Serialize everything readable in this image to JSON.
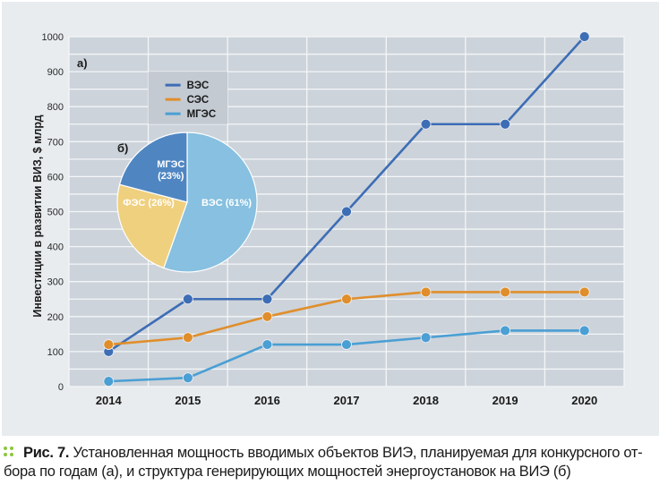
{
  "chart_data": [
    {
      "type": "line",
      "panel_label": "а)",
      "title": "",
      "xlabel": "",
      "ylabel": "Инвестиции в развитии ВИЗ, $ млрд",
      "categories": [
        "2014",
        "2015",
        "2016",
        "2017",
        "2018",
        "2019",
        "2020"
      ],
      "ylim": [
        0,
        1000
      ],
      "yticks": [
        0,
        100,
        200,
        300,
        400,
        500,
        600,
        700,
        800,
        900,
        1000
      ],
      "grid": true,
      "legend_position": "top-left",
      "series": [
        {
          "name": "ВЭС",
          "color": "#3d6db5",
          "values": [
            100,
            250,
            250,
            500,
            750,
            750,
            1000
          ]
        },
        {
          "name": "СЭС",
          "color": "#e08e2b",
          "values": [
            120,
            140,
            200,
            250,
            270,
            270,
            270
          ]
        },
        {
          "name": "МГЭС",
          "color": "#4a9fd4",
          "values": [
            15,
            25,
            120,
            120,
            140,
            160,
            160
          ]
        }
      ]
    },
    {
      "type": "pie",
      "panel_label": "б)",
      "slices": [
        {
          "label": "ВЭС",
          "display": "ВЭС (61%)",
          "value": 61,
          "color": "#87c0e0"
        },
        {
          "label": "ФЭС",
          "display": "ФЭС (26%)",
          "value": 26,
          "color": "#efd07f"
        },
        {
          "label": "МГЭС",
          "display_line1": "МГЭС",
          "display_line2": "(23%)",
          "value": 23,
          "color": "#4f86c2"
        }
      ]
    }
  ],
  "caption": {
    "figure_label": "Рис. 7.",
    "text": " Установленная мощность вводимых объектов ВИЭ, планируемая для конкурсного от-бора по годам (а), и структура генерирующих мощностей энергоустановок на ВИЭ (б)",
    "bullet_color": "#8cc63f"
  }
}
